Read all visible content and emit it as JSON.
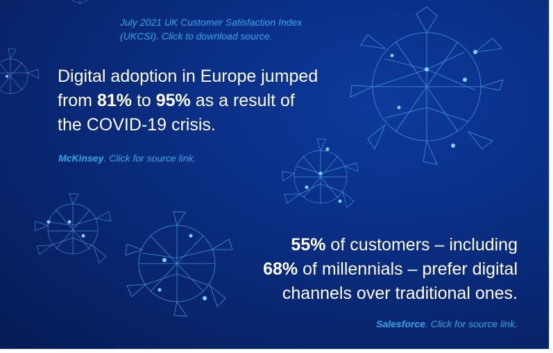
{
  "top_link": {
    "line1": "July 2021 UK Customer Satisfaction Index",
    "line2": "(UKCSI). Click to download source."
  },
  "stat1": {
    "line1": "Digital adoption in Europe jumped",
    "line2_pre": "from ",
    "line2_b1": "81%",
    "line2_mid": " to ",
    "line2_b2": "95%",
    "line2_post": " as a result of",
    "line3": "the COVID-19 crisis."
  },
  "link1": {
    "source": "McKinsey",
    "rest": ". Click for source link."
  },
  "stat2": {
    "line1_b": "55%",
    "line1_rest": " of customers – including",
    "line2_b": "68%",
    "line2_rest": " of millennials – prefer digital",
    "line3": "channels over traditional ones."
  },
  "link2": {
    "source": "Salesforce",
    "rest": ". Click for source link."
  },
  "colors": {
    "background": "#0a2f86",
    "link": "#2ea7e8",
    "text": "#ffffff"
  }
}
